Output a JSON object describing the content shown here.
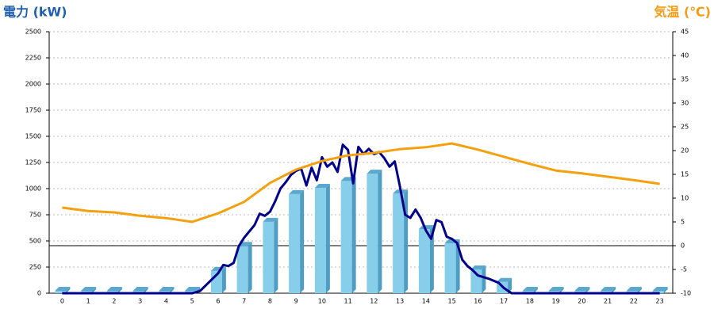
{
  "chart_data": {
    "type": "bar",
    "title": "電力 (kW)",
    "y2_title": "気温 (℃)",
    "title_color": "#1f5fae",
    "y2_title_color": "#f39c12",
    "categories": [
      "0",
      "1",
      "2",
      "3",
      "4",
      "5",
      "6",
      "7",
      "8",
      "9",
      "10",
      "11",
      "12",
      "13",
      "14",
      "15",
      "16",
      "17",
      "18",
      "19",
      "20",
      "21",
      "22",
      "23"
    ],
    "ylim": [
      0,
      2500
    ],
    "yticks": [
      0,
      250,
      500,
      750,
      1000,
      1250,
      1500,
      1750,
      2000,
      2250,
      2500
    ],
    "y2lim": [
      -10,
      45
    ],
    "y2ticks": [
      -10,
      -5,
      0,
      5,
      10,
      15,
      20,
      25,
      30,
      35,
      40,
      45
    ],
    "grid": true,
    "series": [
      {
        "type": "bar",
        "color": "#87ceeb",
        "values": [
          0,
          0,
          0,
          0,
          0,
          0,
          190,
          430,
          660,
          925,
          985,
          1050,
          1120,
          930,
          590,
          455,
          205,
          85,
          0,
          0,
          0,
          0,
          0,
          0
        ]
      },
      {
        "type": "line",
        "color": "#00008b",
        "x": [
          0,
          5,
          5.3,
          6,
          6.2,
          6.4,
          6.6,
          6.8,
          7,
          7.2,
          7.4,
          7.6,
          7.8,
          8,
          8.2,
          8.4,
          8.6,
          8.8,
          9,
          9.2,
          9.4,
          9.6,
          9.8,
          10,
          10.2,
          10.4,
          10.6,
          10.8,
          11,
          11.2,
          11.4,
          11.6,
          11.8,
          12,
          12.2,
          12.4,
          12.6,
          12.8,
          13,
          13.2,
          13.4,
          13.6,
          13.8,
          14,
          14.2,
          14.4,
          14.6,
          14.8,
          15,
          15.2,
          15.4,
          15.6,
          15.8,
          16,
          16.4,
          16.8,
          17,
          17.3,
          23
        ],
        "values": [
          0,
          0,
          20,
          190,
          270,
          260,
          290,
          450,
          530,
          590,
          650,
          760,
          740,
          780,
          880,
          1000,
          1060,
          1130,
          1170,
          1190,
          1030,
          1200,
          1080,
          1300,
          1210,
          1250,
          1160,
          1420,
          1370,
          1050,
          1400,
          1330,
          1380,
          1330,
          1350,
          1290,
          1210,
          1260,
          1020,
          750,
          720,
          800,
          720,
          600,
          520,
          700,
          680,
          540,
          520,
          480,
          320,
          260,
          220,
          170,
          140,
          100,
          50,
          0,
          0
        ]
      },
      {
        "type": "line",
        "axis": "y2",
        "color": "#f5a00f",
        "values": [
          8,
          7.3,
          7,
          6.3,
          5.8,
          5,
          6.8,
          9.2,
          13.2,
          16,
          17.8,
          19,
          19.5,
          20.3,
          20.7,
          21.5,
          20.2,
          18.7,
          17.2,
          15.8,
          15.2,
          14.5,
          13.8,
          13
        ]
      }
    ]
  }
}
